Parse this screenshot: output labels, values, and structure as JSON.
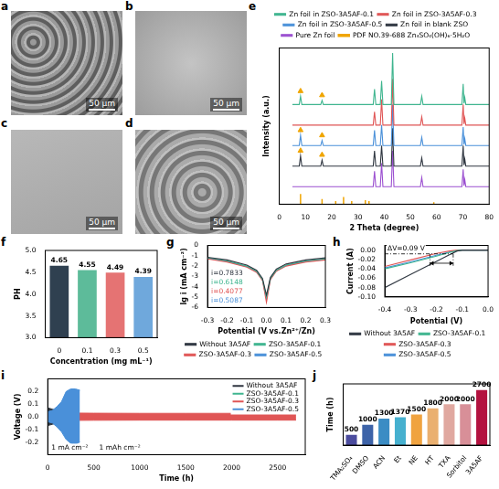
{
  "images": [
    {
      "panel": "a",
      "scale_bar": "50 μm"
    },
    {
      "panel": "b",
      "scale_bar": "50 μm"
    },
    {
      "panel": "c",
      "scale_bar": "50 μm"
    },
    {
      "panel": "d",
      "scale_bar": "50 μm"
    }
  ],
  "chart_data": [
    {
      "panel": "e",
      "type": "line",
      "x_label": "2 Theta (degree)",
      "y_label": "Intensity (a.u.)",
      "xlim": [
        0,
        80
      ],
      "xticks": [
        0,
        10,
        20,
        30,
        40,
        50,
        60,
        70,
        80
      ],
      "ylim": [
        -12,
        140
      ],
      "tick_labels": "x",
      "grid": false,
      "legend": "top",
      "x": [
        5,
        7.6,
        8.1,
        8.6,
        15.8,
        16.3,
        16.8,
        35.8,
        36.3,
        36.8,
        38.5,
        39.0,
        39.5,
        42.7,
        43.2,
        43.7,
        53.8,
        54.3,
        54.8,
        69.6,
        70.1,
        70.4,
        70.7,
        71.1,
        80
      ],
      "series": [
        {
          "name": "Zn foil in ZSO-3A5AF-0.1",
          "color": "#3fb58f",
          "values": [
            85,
            85,
            93,
            85,
            85,
            89,
            85,
            85,
            100,
            85,
            85,
            108,
            85,
            85,
            135,
            85,
            85,
            93,
            85,
            85,
            105,
            86,
            92,
            85,
            85
          ]
        },
        {
          "name": "Zn foil in ZSO-3A5AF-0.3",
          "color": "#e05555",
          "values": [
            65,
            65,
            65,
            65,
            65,
            65,
            65,
            65,
            78,
            65,
            65,
            90,
            65,
            65,
            110,
            65,
            65,
            73,
            65,
            65,
            85,
            66,
            72,
            65,
            65
          ]
        },
        {
          "name": "Zn foil in ZSO-3A5AF-0.5",
          "color": "#4a90d9",
          "values": [
            45,
            45,
            55,
            45,
            45,
            50,
            45,
            45,
            60,
            45,
            45,
            65,
            45,
            45,
            85,
            45,
            45,
            53,
            45,
            45,
            63,
            46,
            52,
            45,
            45
          ]
        },
        {
          "name": "Zn foil in blank ZSO",
          "color": "#2f3640",
          "values": [
            25,
            25,
            35,
            25,
            25,
            31,
            25,
            25,
            40,
            25,
            25,
            45,
            25,
            25,
            62,
            25,
            25,
            33,
            25,
            25,
            45,
            26,
            32,
            25,
            25
          ]
        },
        {
          "name": "Pure Zn foil",
          "color": "#9b4fd0",
          "values": [
            5,
            5,
            5,
            5,
            5,
            5,
            5,
            5,
            20,
            5,
            5,
            28,
            5,
            5,
            40,
            5,
            5,
            14,
            5,
            5,
            22,
            6,
            12,
            5,
            5
          ]
        },
        {
          "name": "PDF NO.39-688 Zn₄SO₄(OH)₆·5H₂O",
          "type": "stick",
          "color": "#f0a500",
          "x": [
            8.1,
            16.3,
            21.5,
            24.5,
            27.6,
            32.8,
            34.2,
            58.9
          ],
          "values": [
            -2,
            -7,
            -9,
            -5,
            -9,
            -8,
            -9,
            -10
          ],
          "marker": "triangle",
          "marker_points": {
            "x": [
              8.1,
              16.3,
              8.1,
              16.3,
              8.1,
              16.3
            ],
            "y": [
              98,
              94,
              60,
              55,
              40,
              36
            ]
          }
        }
      ]
    },
    {
      "panel": "f",
      "type": "bar",
      "categories": [
        "0",
        "0.1",
        "0.3",
        "0.5"
      ],
      "values": [
        4.65,
        4.55,
        4.49,
        4.39
      ],
      "colors": [
        "#2f4050",
        "#5dbb9a",
        "#e57373",
        "#6fa8dc"
      ],
      "x_label": "Concentration (mg mL⁻¹)",
      "y_label": "PH",
      "ylim": [
        3,
        5
      ],
      "yticks": [
        {
          "value": 3,
          "label": "3.0"
        },
        3.5,
        {
          "value": 4,
          "label": "4.0"
        },
        4.5,
        {
          "value": 5,
          "label": "5.0"
        }
      ],
      "data_labels": true,
      "grid": false
    },
    {
      "panel": "g",
      "type": "line",
      "x_label": "Potential (V vs.Zn²⁺/Zn)",
      "y_label": "lg i (mA cm⁻²)",
      "xlim": [
        -0.3,
        0.3
      ],
      "xticks": [
        -0.3,
        -0.2,
        -0.1,
        {
          "value": 0,
          "label": "0.0"
        },
        0.1,
        0.2,
        0.3
      ],
      "ylim": [
        -6,
        0
      ],
      "yticks": [
        -6,
        -5,
        -4,
        -3,
        -2,
        -1,
        0
      ],
      "grid": false,
      "legend": "bottom",
      "x": [
        -0.3,
        -0.2,
        -0.1,
        -0.05,
        -0.02,
        0,
        0.02,
        0.05,
        0.1,
        0.2,
        0.3
      ],
      "series": [
        {
          "name": "Without 3A5AF",
          "color": "#2f3640",
          "values": [
            -1.15,
            -1.4,
            -1.9,
            -2.4,
            -3.2,
            -4.8,
            -3.1,
            -2.3,
            -1.8,
            -1.4,
            -1.2
          ]
        },
        {
          "name": "ZSO-3A5AF-0.1",
          "color": "#3fb58f",
          "values": [
            -1.2,
            -1.5,
            -2.0,
            -2.5,
            -3.3,
            -5.0,
            -3.2,
            -2.4,
            -1.9,
            -1.5,
            -1.3
          ]
        },
        {
          "name": "ZSO-3A5AF-0.3",
          "color": "#e05555",
          "values": [
            -1.3,
            -1.6,
            -2.1,
            -2.6,
            -3.4,
            -5.5,
            -3.3,
            -2.5,
            -2.0,
            -1.6,
            -1.4
          ]
        },
        {
          "name": "ZSO-3A5AF-0.5",
          "color": "#4a90d9",
          "values": [
            -1.25,
            -1.55,
            -2.05,
            -2.55,
            -3.35,
            -5.2,
            -3.25,
            -2.45,
            -1.95,
            -1.55,
            -1.35
          ]
        }
      ],
      "annotations": [
        {
          "text": "i=0.7833",
          "color": "#2f3640"
        },
        {
          "text": "i=0.6148",
          "color": "#3fb58f"
        },
        {
          "text": "i=0.4077",
          "color": "#e05555"
        },
        {
          "text": "i=0.5087",
          "color": "#4a90d9"
        }
      ]
    },
    {
      "panel": "h",
      "type": "line",
      "x_label": "Potential (V)",
      "y_label": "Current (A)",
      "xlim": [
        -0.4,
        0
      ],
      "xticks": [
        -0.4,
        -0.3,
        -0.2,
        -0.1,
        {
          "value": 0,
          "label": "0.0"
        }
      ],
      "ylim": [
        -0.1,
        0.01
      ],
      "yticks": [
        {
          "value": -0.1,
          "label": "-0.10"
        },
        -0.08,
        -0.06,
        -0.04,
        -0.02,
        {
          "value": 0,
          "label": "0.00"
        }
      ],
      "grid": false,
      "legend": "bottom",
      "x": [
        -0.4,
        -0.3,
        -0.2,
        -0.15,
        -0.12,
        -0.1,
        0
      ],
      "series": [
        {
          "name": "Without 3A5AF",
          "color": "#2f3640",
          "values": [
            -0.08,
            -0.052,
            -0.024,
            -0.01,
            -0.002,
            0,
            0
          ]
        },
        {
          "name": "ZSO-3A5AF-0.1",
          "color": "#3fb58f",
          "values": [
            -0.04,
            -0.027,
            -0.013,
            -0.005,
            -0.001,
            0,
            0
          ]
        },
        {
          "name": "ZSO-3A5AF-0.3",
          "color": "#e05555",
          "values": [
            -0.035,
            -0.021,
            -0.007,
            -0.002,
            0,
            0,
            0
          ]
        },
        {
          "name": "ZSO-3A5AF-0.5",
          "color": "#4a90d9",
          "values": [
            -0.038,
            -0.025,
            -0.011,
            -0.004,
            -0.001,
            0,
            0
          ]
        }
      ],
      "annotation": {
        "text": "ΔV=0.09 V",
        "hline": -0.008,
        "vlines": [
          -0.225,
          -0.135
        ],
        "arrow_y": -0.028
      }
    },
    {
      "panel": "i",
      "type": "band",
      "x_label": "Time (h)",
      "y_label": "Voltage (V)",
      "xlim": [
        0,
        2800
      ],
      "xticks": [
        0,
        500,
        1000,
        1500,
        2000,
        2500
      ],
      "ylim": [
        -0.3,
        0.3
      ],
      "yticks": [
        -0.2,
        -0.1,
        {
          "value": 0,
          "label": "0.0"
        },
        0.1,
        0.2
      ],
      "grid": false,
      "legend": "top-right",
      "series": [
        {
          "name": "Without 3A5AF",
          "color": "#2f3640",
          "x": [
            0,
            50,
            100,
            150,
            200
          ],
          "max": [
            0.07,
            0.06,
            0.05,
            0.06,
            0.05
          ],
          "min": [
            -0.07,
            -0.06,
            -0.05,
            -0.06,
            -0.05
          ]
        },
        {
          "name": "ZSO-3A5AF-0.1",
          "color": "#3fb58f",
          "x": [
            0,
            100,
            200,
            300,
            330
          ],
          "max": [
            0.035,
            0.032,
            0.03,
            0.03,
            0.03
          ],
          "min": [
            -0.035,
            -0.032,
            -0.03,
            -0.03,
            -0.03
          ]
        },
        {
          "name": "ZSO-3A5AF-0.3",
          "color": "#e05555",
          "x": [
            0,
            500,
            1000,
            1500,
            2000,
            2500,
            2700
          ],
          "max": [
            0.03,
            0.028,
            0.027,
            0.027,
            0.027,
            0.027,
            0.027
          ],
          "min": [
            -0.03,
            -0.028,
            -0.027,
            -0.027,
            -0.027,
            -0.027,
            -0.027
          ]
        },
        {
          "name": "ZSO-3A5AF-0.5",
          "color": "#4a90d9",
          "x": [
            0,
            50,
            100,
            150,
            200,
            250,
            300,
            350
          ],
          "max": [
            0.04,
            0.05,
            0.08,
            0.12,
            0.2,
            0.22,
            0.22,
            0.21
          ],
          "min": [
            -0.04,
            -0.05,
            -0.08,
            -0.12,
            -0.18,
            -0.21,
            -0.22,
            -0.2
          ]
        }
      ],
      "annotations": [
        {
          "text": "1 mA cm⁻²"
        },
        {
          "text": "1 mAh cm⁻²"
        }
      ]
    },
    {
      "panel": "j",
      "type": "bar",
      "categories": [
        "TMA₂SO₄",
        "DMSO",
        "ACN",
        "Et",
        "NE",
        "HT",
        "TXA",
        "Sorbitol",
        "3A5AF"
      ],
      "values": [
        500,
        1000,
        1300,
        1370,
        1500,
        1800,
        2000,
        2000,
        2700
      ],
      "colors": [
        "#4b4c9e",
        "#3d63a8",
        "#3b8cc4",
        "#46b0cf",
        "#f0a340",
        "#eab070",
        "#e0a8a0",
        "#d88f98",
        "#b3123f"
      ],
      "y_label": "Time (h)",
      "ylim": [
        0,
        3000
      ],
      "tick_labels": "x",
      "data_labels": true,
      "grid": false
    }
  ]
}
